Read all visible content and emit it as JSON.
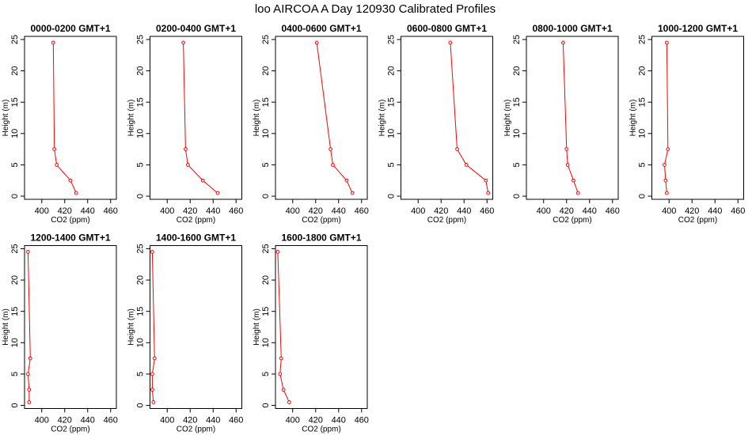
{
  "title": "loo AIRCOA A  Day 120930  Calibrated Profiles",
  "colors": {
    "line": "#ff0000",
    "frame": "#000000",
    "background": "#ffffff"
  },
  "chart_data": [
    {
      "type": "line",
      "title": "0000-0200 GMT+1",
      "xlabel": "CO2 (ppm)",
      "ylabel": "Height (m)",
      "xlim": [
        385,
        465
      ],
      "ylim": [
        -0.5,
        25.5
      ],
      "xticks": [
        400,
        420,
        440,
        460
      ],
      "yticks": [
        0,
        5,
        10,
        15,
        20,
        25
      ],
      "x": [
        430,
        425,
        413,
        411,
        410
      ],
      "y": [
        0.5,
        2.5,
        5,
        7.5,
        24.5
      ]
    },
    {
      "type": "line",
      "title": "0200-0400 GMT+1",
      "xlabel": "CO2 (ppm)",
      "ylabel": "Height (m)",
      "xlim": [
        385,
        465
      ],
      "ylim": [
        -0.5,
        25.5
      ],
      "xticks": [
        400,
        420,
        440,
        460
      ],
      "yticks": [
        0,
        5,
        10,
        15,
        20,
        25
      ],
      "x": [
        444,
        431,
        418,
        416,
        414
      ],
      "y": [
        0.5,
        2.5,
        5,
        7.5,
        24.5
      ]
    },
    {
      "type": "line",
      "title": "0400-0600 GMT+1",
      "xlabel": "CO2 (ppm)",
      "ylabel": "Height (m)",
      "xlim": [
        385,
        465
      ],
      "ylim": [
        -0.5,
        25.5
      ],
      "xticks": [
        400,
        420,
        440,
        460
      ],
      "yticks": [
        0,
        5,
        10,
        15,
        20,
        25
      ],
      "x": [
        452,
        447,
        435,
        433,
        421
      ],
      "y": [
        0.5,
        2.5,
        5,
        7.5,
        24.5
      ]
    },
    {
      "type": "line",
      "title": "0600-0800 GMT+1",
      "xlabel": "CO2 (ppm)",
      "ylabel": "Height (m)",
      "xlim": [
        385,
        465
      ],
      "ylim": [
        -0.5,
        25.5
      ],
      "xticks": [
        400,
        420,
        440,
        460
      ],
      "yticks": [
        0,
        5,
        10,
        15,
        20,
        25
      ],
      "x": [
        461,
        459,
        442,
        434,
        428
      ],
      "y": [
        0.5,
        2.5,
        5,
        7.5,
        24.5
      ]
    },
    {
      "type": "line",
      "title": "0800-1000 GMT+1",
      "xlabel": "CO2 (ppm)",
      "ylabel": "Height (m)",
      "xlim": [
        385,
        465
      ],
      "ylim": [
        -0.5,
        25.5
      ],
      "xticks": [
        400,
        420,
        440,
        460
      ],
      "yticks": [
        0,
        5,
        10,
        15,
        20,
        25
      ],
      "x": [
        430,
        426,
        421,
        420,
        417
      ],
      "y": [
        0.5,
        2.5,
        5,
        7.5,
        24.5
      ]
    },
    {
      "type": "line",
      "title": "1000-1200 GMT+1",
      "xlabel": "CO2 (ppm)",
      "ylabel": "Height (m)",
      "xlim": [
        385,
        465
      ],
      "ylim": [
        -0.5,
        25.5
      ],
      "xticks": [
        400,
        420,
        440,
        460
      ],
      "yticks": [
        0,
        5,
        10,
        15,
        20,
        25
      ],
      "x": [
        398,
        397,
        396,
        399,
        398
      ],
      "y": [
        0.5,
        2.5,
        5,
        7.5,
        24.5
      ]
    },
    {
      "type": "line",
      "title": "1200-1400 GMT+1",
      "xlabel": "CO2 (ppm)",
      "ylabel": "Height (m)",
      "xlim": [
        385,
        465
      ],
      "ylim": [
        -0.5,
        25.5
      ],
      "xticks": [
        400,
        420,
        440,
        460
      ],
      "yticks": [
        0,
        5,
        10,
        15,
        20,
        25
      ],
      "x": [
        389,
        389,
        388,
        390,
        388
      ],
      "y": [
        0.5,
        2.5,
        5,
        7.5,
        24.5
      ]
    },
    {
      "type": "line",
      "title": "1400-1600 GMT+1",
      "xlabel": "CO2 (ppm)",
      "ylabel": "Height (m)",
      "xlim": [
        385,
        465
      ],
      "ylim": [
        -0.5,
        25.5
      ],
      "xticks": [
        400,
        420,
        440,
        460
      ],
      "yticks": [
        0,
        5,
        10,
        15,
        20,
        25
      ],
      "x": [
        388,
        387,
        387,
        389,
        387
      ],
      "y": [
        0.5,
        2.5,
        5,
        7.5,
        24.5
      ]
    },
    {
      "type": "line",
      "title": "1600-1800 GMT+1",
      "xlabel": "CO2 (ppm)",
      "ylabel": "Height (m)",
      "xlim": [
        385,
        465
      ],
      "ylim": [
        -0.5,
        25.5
      ],
      "xticks": [
        400,
        420,
        440,
        460
      ],
      "yticks": [
        0,
        5,
        10,
        15,
        20,
        25
      ],
      "x": [
        397,
        392,
        389,
        390,
        387
      ],
      "y": [
        0.5,
        2.5,
        5,
        7.5,
        24.5
      ]
    }
  ]
}
